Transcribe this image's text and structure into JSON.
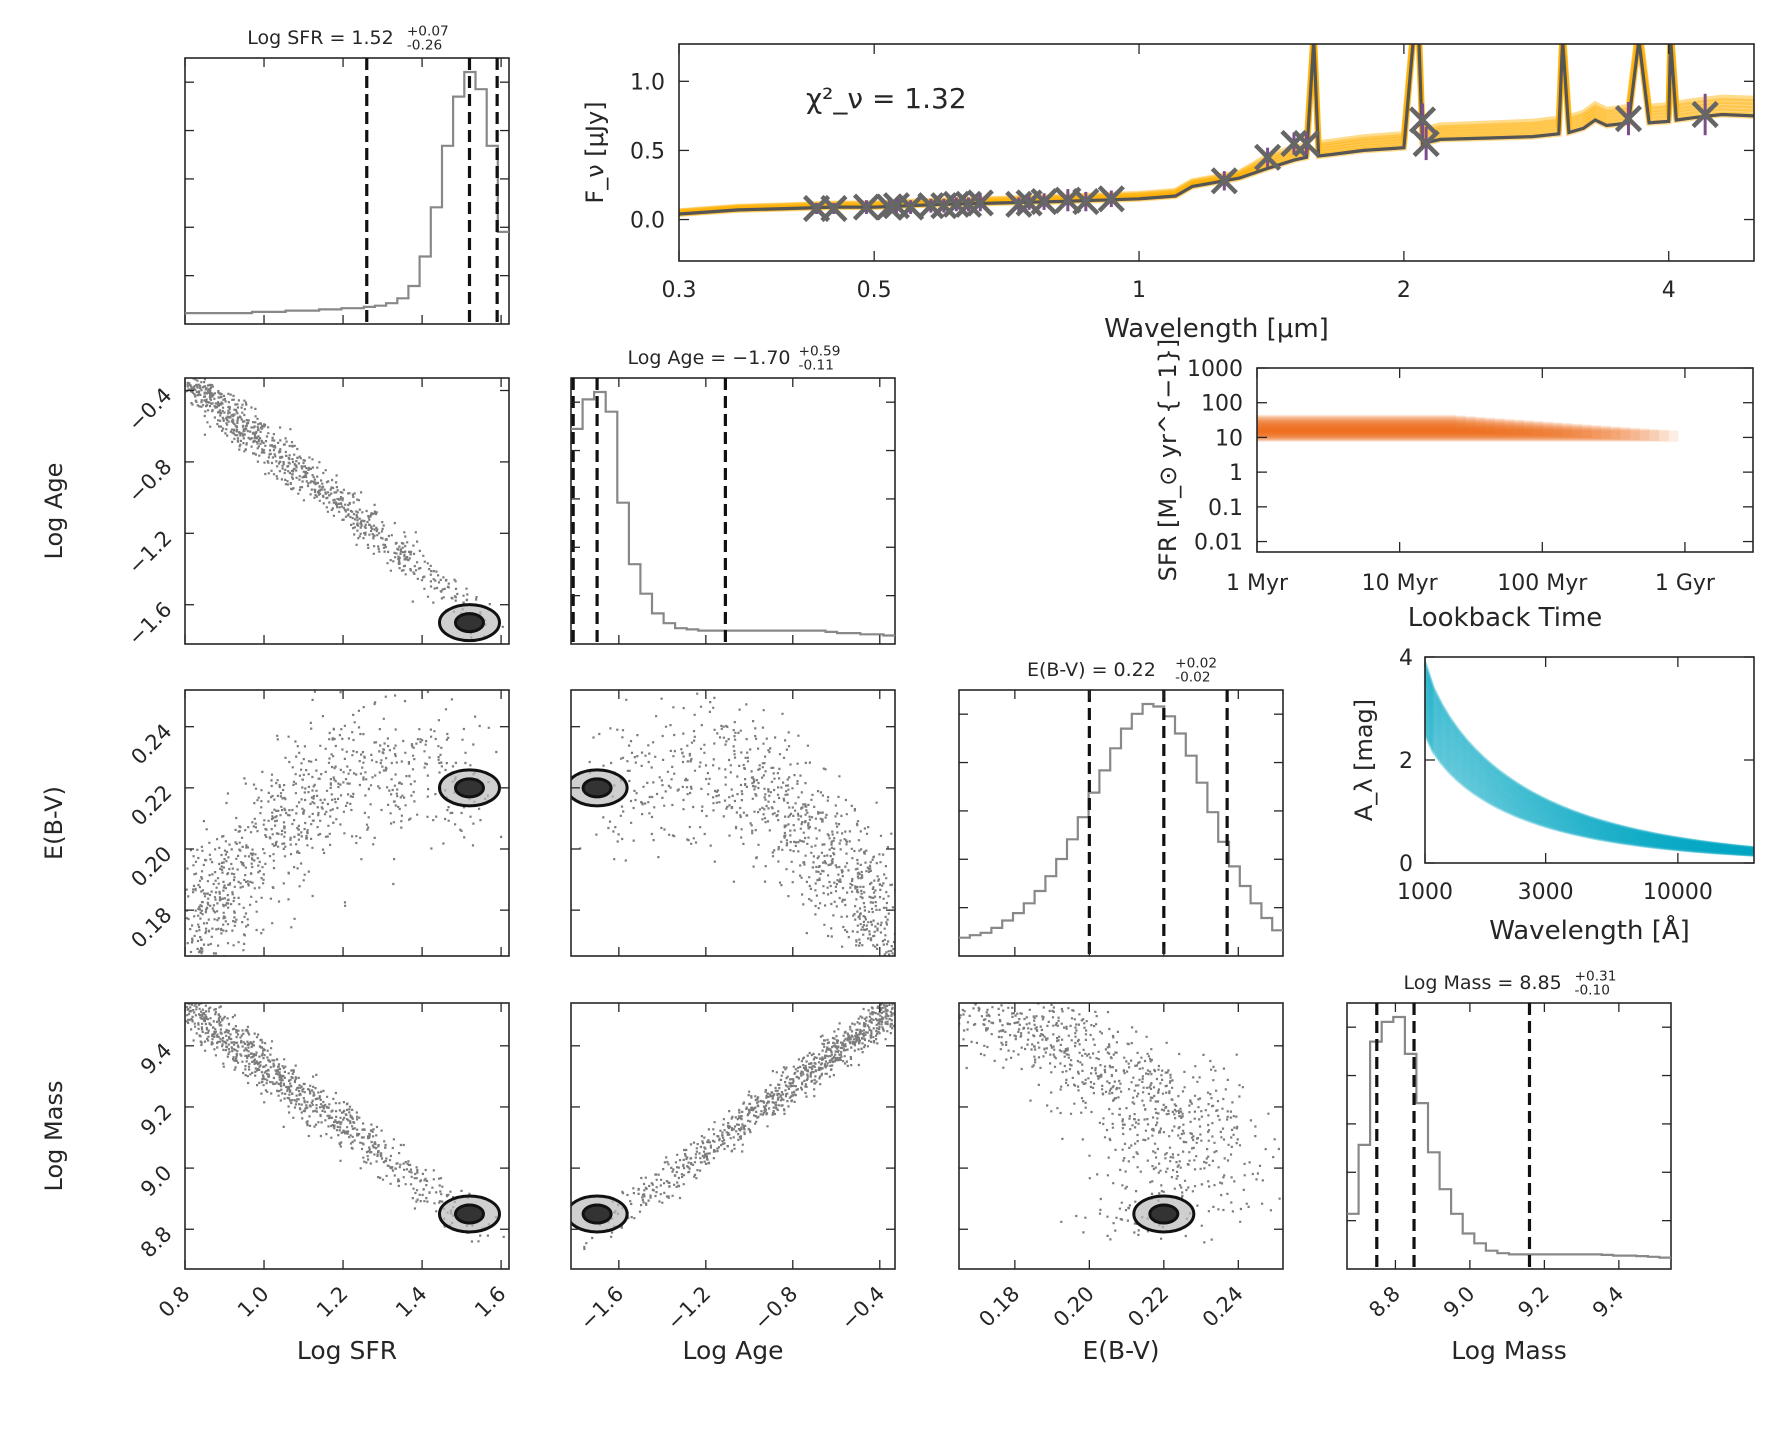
{
  "colors": {
    "hist": "#888888",
    "quantile": "#111111",
    "sed_band": "#ffb000",
    "sed_model": "#555555",
    "sed_obs_x": "#666666",
    "sed_err": "#7a4f8a",
    "sfh": "#f26a1b",
    "atten": "#00a7c4"
  },
  "titles": {
    "logsfr": "Log SFR = 1.52^{+0.07}_{-0.26}",
    "logage": "Log Age = −1.70^{+0.59}_{-0.11}",
    "ebv": "E(B-V) = 0.22^{+0.02}_{-0.02}",
    "logmass": "Log Mass = 8.85^{+0.31}_{-0.10}"
  },
  "chi2_label": "χ²_ν = 1.32",
  "chart_data": [
    {
      "id": "corner",
      "type": "histogram-corner",
      "params": [
        {
          "name": "Log SFR",
          "range": [
            0.8,
            1.62
          ],
          "ticks": [
            "0.8",
            "1.0",
            "1.2",
            "1.4",
            "1.6"
          ],
          "tick_values": [
            0.8,
            1.0,
            1.2,
            1.4,
            1.6
          ],
          "median": 1.52,
          "q16": 1.26,
          "q84": 1.59
        },
        {
          "name": "Log Age",
          "range": [
            -1.82,
            -0.33
          ],
          "ticks": [
            "−1.6",
            "−1.2",
            "−0.8",
            "−0.4"
          ],
          "tick_values": [
            -1.6,
            -1.2,
            -0.8,
            -0.4
          ],
          "median": -1.7,
          "q16": -1.81,
          "q84": -1.11
        },
        {
          "name": "E(B-V)",
          "range": [
            0.165,
            0.252
          ],
          "ticks": [
            "0.18",
            "0.20",
            "0.22",
            "0.24"
          ],
          "tick_values": [
            0.18,
            0.2,
            0.22,
            0.24
          ],
          "median": 0.22,
          "q16": 0.2,
          "q84": 0.237
        },
        {
          "name": "Log Mass",
          "range": [
            8.67,
            9.54
          ],
          "ticks": [
            "8.8",
            "9.0",
            "9.2",
            "9.4"
          ],
          "tick_values": [
            8.8,
            9.0,
            9.2,
            9.4
          ],
          "median": 8.85,
          "q16": 8.75,
          "q84": 9.16
        }
      ],
      "marginal_histograms": {
        "Log SFR": [
          0.02,
          0.02,
          0.02,
          0.02,
          0.02,
          0.02,
          0.025,
          0.025,
          0.025,
          0.03,
          0.03,
          0.03,
          0.035,
          0.035,
          0.04,
          0.04,
          0.045,
          0.05,
          0.06,
          0.08,
          0.13,
          0.25,
          0.45,
          0.7,
          0.9,
          1.0,
          0.93,
          0.7,
          0.35
        ],
        "Log Age": [
          0.85,
          0.97,
          1.0,
          0.92,
          0.55,
          0.3,
          0.18,
          0.1,
          0.06,
          0.04,
          0.035,
          0.03,
          0.03,
          0.03,
          0.03,
          0.03,
          0.03,
          0.03,
          0.03,
          0.03,
          0.03,
          0.03,
          0.025,
          0.02,
          0.02,
          0.015,
          0.015,
          0.01
        ],
        "E(B-V)": [
          0.05,
          0.06,
          0.07,
          0.09,
          0.12,
          0.15,
          0.19,
          0.24,
          0.3,
          0.37,
          0.45,
          0.54,
          0.64,
          0.73,
          0.82,
          0.9,
          0.96,
          1.0,
          0.99,
          0.95,
          0.88,
          0.79,
          0.68,
          0.56,
          0.44,
          0.34,
          0.26,
          0.19,
          0.13,
          0.08
        ],
        "Log Mass": [
          0.2,
          0.48,
          0.9,
          0.98,
          1.0,
          0.85,
          0.65,
          0.45,
          0.3,
          0.2,
          0.12,
          0.08,
          0.05,
          0.04,
          0.035,
          0.035,
          0.035,
          0.035,
          0.035,
          0.035,
          0.035,
          0.035,
          0.033,
          0.03,
          0.03,
          0.028,
          0.025,
          0.022
        ]
      }
    },
    {
      "id": "sed",
      "type": "line",
      "title": "",
      "xlabel": "Wavelength [μm]",
      "ylabel": "F_ν [μJy]",
      "xscale": "log",
      "xlim": [
        0.3,
        5.0
      ],
      "ylim": [
        -0.3,
        1.27
      ],
      "xticks": [
        "0.3",
        "0.5",
        "1",
        "2",
        "4"
      ],
      "xtick_values": [
        0.3,
        0.5,
        1,
        2,
        4
      ],
      "yticks": [
        "0.0",
        "0.5",
        "1.0"
      ],
      "ytick_values": [
        0.0,
        0.5,
        1.0
      ],
      "series": [
        {
          "kind": "model",
          "x": [
            0.3,
            0.35,
            0.4,
            0.45,
            0.5,
            0.6,
            0.7,
            0.8,
            0.9,
            1.0,
            1.1,
            1.15,
            1.2,
            1.3,
            1.4,
            1.5,
            1.55,
            1.58,
            1.6,
            1.65,
            1.8,
            2.0,
            2.05,
            2.08,
            2.1,
            2.2,
            2.5,
            2.8,
            3.0,
            3.03,
            3.08,
            3.2,
            3.3,
            3.4,
            3.5,
            3.6,
            3.7,
            3.8,
            4.0,
            4.02,
            4.08,
            4.3,
            4.6,
            5.0
          ],
          "y": [
            0.04,
            0.07,
            0.08,
            0.09,
            0.09,
            0.11,
            0.12,
            0.13,
            0.14,
            0.15,
            0.17,
            0.24,
            0.26,
            0.3,
            0.37,
            0.43,
            0.45,
            1.3,
            0.46,
            0.47,
            0.5,
            0.52,
            1.3,
            1.3,
            0.55,
            0.58,
            0.59,
            0.6,
            0.62,
            1.3,
            0.63,
            0.66,
            0.72,
            0.68,
            0.69,
            0.7,
            1.3,
            0.7,
            0.71,
            1.3,
            0.72,
            0.74,
            0.76,
            0.75
          ]
        },
        {
          "kind": "observed",
          "x": [
            0.43,
            0.45,
            0.49,
            0.52,
            0.53,
            0.55,
            0.58,
            0.6,
            0.62,
            0.64,
            0.66,
            0.73,
            0.75,
            0.78,
            0.83,
            0.87,
            0.93,
            1.25,
            1.4,
            1.5,
            1.55,
            2.1,
            2.12,
            3.6,
            4.4
          ],
          "y": [
            0.08,
            0.08,
            0.09,
            0.09,
            0.1,
            0.09,
            0.1,
            0.1,
            0.11,
            0.11,
            0.12,
            0.11,
            0.12,
            0.13,
            0.14,
            0.13,
            0.15,
            0.28,
            0.45,
            0.55,
            0.55,
            0.72,
            0.55,
            0.73,
            0.76
          ],
          "err": [
            0.04,
            0.04,
            0.05,
            0.05,
            0.05,
            0.05,
            0.05,
            0.05,
            0.05,
            0.05,
            0.06,
            0.05,
            0.05,
            0.06,
            0.08,
            0.07,
            0.06,
            0.07,
            0.07,
            0.08,
            0.08,
            0.12,
            0.12,
            0.12,
            0.15
          ]
        }
      ]
    },
    {
      "id": "sfh",
      "type": "area",
      "title": "",
      "xlabel": "Lookback Time",
      "ylabel": "SFR [M_⊙ yr^{−1}]",
      "xscale": "log",
      "yscale": "log",
      "xlim_myr": [
        1,
        3000
      ],
      "ylim": [
        0.005,
        1000
      ],
      "xticks": [
        "1 Myr",
        "10 Myr",
        "100 Myr",
        "1 Gyr"
      ],
      "xtick_values_myr": [
        1,
        10,
        100,
        1000
      ],
      "yticks": [
        "1000",
        "100",
        "10",
        "1",
        "0.1",
        "0.01"
      ],
      "ytick_values": [
        1000,
        100,
        10,
        1,
        0.1,
        0.01
      ],
      "band_lower": 15,
      "band_upper": 45,
      "age_end_myr": [
        25,
        900
      ]
    },
    {
      "id": "atten",
      "type": "line",
      "title": "",
      "xlabel": "Wavelength [Å]",
      "ylabel": "A_λ [mag]",
      "xscale": "log",
      "xlim": [
        1000,
        20000
      ],
      "ylim": [
        0,
        4
      ],
      "xticks": [
        "1000",
        "3000",
        "10000"
      ],
      "xtick_values": [
        1000,
        3000,
        10000
      ],
      "yticks": [
        "0",
        "2",
        "4"
      ],
      "ytick_values": [
        0,
        2,
        4
      ],
      "curve_low_at_1000": 2.5,
      "curve_high_at_1000": 3.9,
      "end_at_20000": [
        0.15,
        0.3
      ]
    }
  ]
}
